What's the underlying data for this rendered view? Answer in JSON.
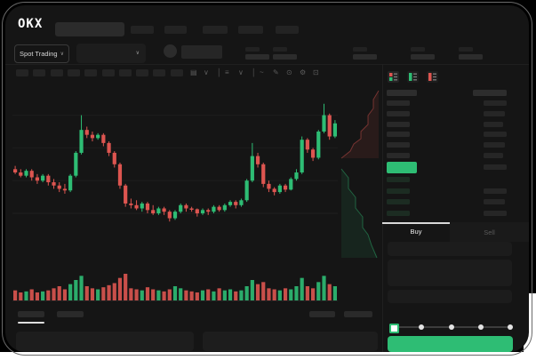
{
  "header": {
    "logo": "OKX",
    "nav_placeholder_count": 5
  },
  "market": {
    "type_label": "Spot Trading",
    "chevron": "∨",
    "stat_group_count": 5
  },
  "toolbar": {
    "timeframe_box_count": 10,
    "icons": [
      {
        "name": "candle-style-icon",
        "glyph": "▤"
      },
      {
        "name": "chevron-down-icon",
        "glyph": "∨"
      },
      {
        "name": "divider",
        "glyph": "│"
      },
      {
        "name": "indicator-icon",
        "glyph": "≡"
      },
      {
        "name": "chevron-down-icon",
        "glyph": "∨"
      },
      {
        "name": "divider",
        "glyph": "│"
      },
      {
        "name": "line-tool-icon",
        "glyph": "~"
      },
      {
        "name": "draw-tool-icon",
        "glyph": "✎"
      },
      {
        "name": "camera-icon",
        "glyph": "⊙"
      },
      {
        "name": "settings-icon",
        "glyph": "⚙"
      },
      {
        "name": "fullscreen-icon",
        "glyph": "⊡"
      }
    ]
  },
  "orderbook": {
    "view_toggles": [
      "book-both-icon",
      "book-bids-icon",
      "book-asks-icon"
    ],
    "ask_row_count": 6,
    "bid_row_count": 4,
    "bid_amount_bar_from": 1
  },
  "trade": {
    "buy_label": "Buy",
    "sell_label": "Sell",
    "slider_stop_count": 5,
    "slider_selected_index": 0
  },
  "colors": {
    "green": "#2ebd74",
    "red": "#dd5550",
    "bid_row": "#1c2c22",
    "skeleton": "#282828"
  },
  "chart_data": {
    "type": "candlestick",
    "ylim": [
      0,
      100
    ],
    "gridline_values": [
      25,
      45,
      65,
      85
    ],
    "grid": "faint-horizontal",
    "candles": [
      [
        52,
        54,
        49,
        50
      ],
      [
        50,
        52,
        47,
        48
      ],
      [
        48,
        52,
        47,
        51
      ],
      [
        51,
        52,
        45,
        47
      ],
      [
        47,
        49,
        43,
        45
      ],
      [
        45,
        49,
        44,
        48
      ],
      [
        48,
        49,
        42,
        44
      ],
      [
        44,
        46,
        40,
        42
      ],
      [
        42,
        44,
        38,
        40
      ],
      [
        40,
        43,
        37,
        39
      ],
      [
        39,
        49,
        38,
        48
      ],
      [
        48,
        63,
        47,
        62
      ],
      [
        62,
        85,
        61,
        76
      ],
      [
        76,
        78,
        71,
        73
      ],
      [
        73,
        75,
        69,
        71
      ],
      [
        71,
        74,
        70,
        73
      ],
      [
        73,
        74,
        66,
        68
      ],
      [
        68,
        69,
        60,
        62
      ],
      [
        62,
        63,
        53,
        55
      ],
      [
        55,
        56,
        40,
        42
      ],
      [
        42,
        43,
        29,
        31
      ],
      [
        31,
        34,
        28,
        30
      ],
      [
        30,
        33,
        27,
        28
      ],
      [
        28,
        32,
        26,
        31
      ],
      [
        31,
        32,
        25,
        27
      ],
      [
        27,
        30,
        24,
        25
      ],
      [
        25,
        29,
        24,
        28
      ],
      [
        28,
        29,
        24,
        26
      ],
      [
        26,
        27,
        20,
        22
      ],
      [
        22,
        27,
        21,
        26
      ],
      [
        26,
        31,
        25,
        30
      ],
      [
        30,
        31,
        26,
        28
      ],
      [
        28,
        29,
        26,
        27.5
      ],
      [
        27.5,
        28,
        23,
        25
      ],
      [
        25,
        28,
        24,
        27
      ],
      [
        27,
        28,
        24,
        26
      ],
      [
        26,
        30,
        25,
        29
      ],
      [
        29,
        30,
        26,
        27
      ],
      [
        27,
        31,
        26,
        30
      ],
      [
        30,
        33,
        29,
        32
      ],
      [
        32,
        33,
        28,
        30
      ],
      [
        30,
        34,
        29,
        33
      ],
      [
        33,
        46,
        32,
        45
      ],
      [
        45,
        68,
        44,
        60
      ],
      [
        60,
        62,
        53,
        55
      ],
      [
        55,
        56,
        41,
        43
      ],
      [
        43,
        45,
        38,
        40
      ],
      [
        40,
        41,
        36,
        38
      ],
      [
        38,
        43,
        37,
        42
      ],
      [
        42,
        43,
        38,
        39.5
      ],
      [
        39.5,
        47,
        39,
        46
      ],
      [
        46,
        52,
        45,
        50
      ],
      [
        50,
        72,
        49,
        70
      ],
      [
        70,
        71,
        62,
        64
      ],
      [
        64,
        65,
        57,
        59
      ],
      [
        59,
        76,
        58,
        75
      ],
      [
        75,
        92,
        74,
        85
      ],
      [
        85,
        86,
        70,
        72
      ],
      [
        72,
        82,
        71,
        80
      ]
    ],
    "volumes": [
      8,
      6,
      7,
      9,
      6,
      7,
      8,
      10,
      12,
      9,
      14,
      18,
      22,
      12,
      10,
      9,
      11,
      13,
      15,
      20,
      24,
      10,
      9,
      8,
      11,
      9,
      8,
      7,
      9,
      12,
      10,
      8,
      7,
      6,
      8,
      9,
      7,
      10,
      8,
      9,
      7,
      8,
      12,
      18,
      14,
      16,
      10,
      9,
      8,
      10,
      9,
      12,
      20,
      12,
      10,
      16,
      22,
      14,
      12
    ],
    "depth": {
      "ask_line": [
        [
          46,
          4
        ],
        [
          40,
          14
        ],
        [
          40,
          24
        ],
        [
          34,
          32
        ],
        [
          34,
          42
        ],
        [
          26,
          50
        ],
        [
          26,
          58
        ],
        [
          18,
          64
        ],
        [
          14,
          72
        ],
        [
          4,
          80
        ]
      ],
      "bid_line": [
        [
          4,
          92
        ],
        [
          12,
          102
        ],
        [
          12,
          114
        ],
        [
          20,
          124
        ],
        [
          20,
          136
        ],
        [
          28,
          146
        ],
        [
          28,
          158
        ],
        [
          34,
          166
        ],
        [
          38,
          178
        ],
        [
          44,
          192
        ]
      ]
    }
  }
}
